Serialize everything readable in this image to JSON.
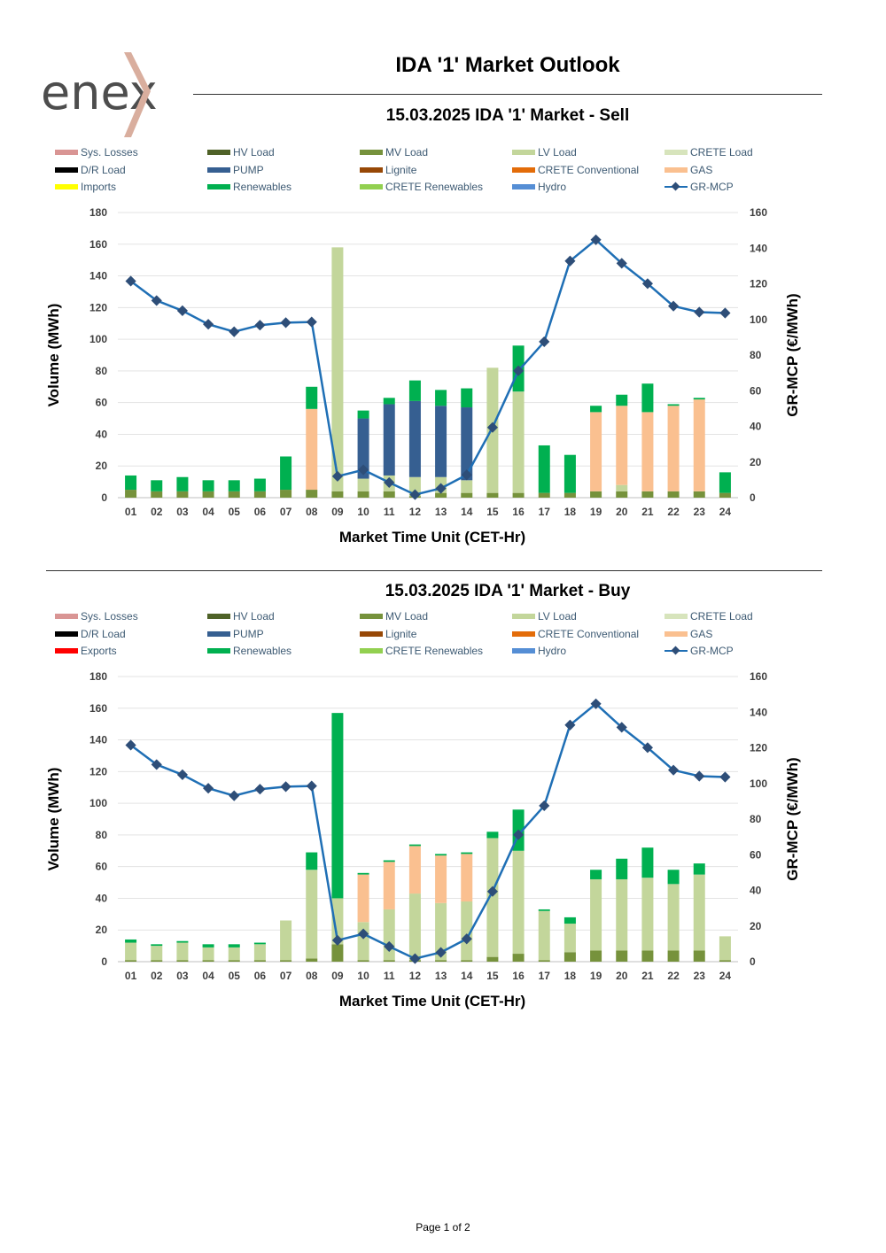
{
  "brand": {
    "logo_text": "enex"
  },
  "page": {
    "title": "IDA '1' Market Outlook",
    "footer": "Page 1 of 2"
  },
  "series_colors": {
    "Sys. Losses": "#d99594",
    "HV Load": "#4f6228",
    "MV Load": "#76923c",
    "LV Load": "#c3d69b",
    "CRETE Load": "#d7e4bc",
    "D/R Load": "#000000",
    "PUMP": "#365f91",
    "Lignite": "#974806",
    "CRETE Conventional": "#e36c09",
    "GAS": "#fac090",
    "Imports": "#ffff00",
    "Exports": "#ff0000",
    "Renewables": "#00b050",
    "CRETE Renewables": "#92d050",
    "Hydro": "#558ed5",
    "GR-MCP": "#1f6fb5"
  },
  "chart_data": [
    {
      "type": "bar",
      "title": "15.03.2025  IDA '1' Market - Sell",
      "xlabel": "Market Time Unit (CET-Hr)",
      "ylabel": "Volume (MWh)",
      "y2label": "GR-MCP (€/MWh)",
      "ylim": [
        0,
        180
      ],
      "yticks": [
        0,
        20,
        40,
        60,
        80,
        100,
        120,
        140,
        160,
        180
      ],
      "y2lim": [
        0,
        160
      ],
      "y2ticks": [
        0,
        20,
        40,
        60,
        80,
        100,
        120,
        140,
        160
      ],
      "categories": [
        "01",
        "02",
        "03",
        "04",
        "05",
        "06",
        "07",
        "08",
        "09",
        "10",
        "11",
        "12",
        "13",
        "14",
        "15",
        "16",
        "17",
        "18",
        "19",
        "20",
        "21",
        "22",
        "23",
        "24"
      ],
      "legend": [
        [
          "Sys. Losses",
          "HV Load",
          "MV Load",
          "LV Load",
          "CRETE Load"
        ],
        [
          "D/R Load",
          "PUMP",
          "Lignite",
          "CRETE Conventional",
          "GAS"
        ],
        [
          "Imports",
          "Renewables",
          "CRETE Renewables",
          "Hydro",
          "GR-MCP"
        ]
      ],
      "series": [
        {
          "name": "MV Load",
          "values": [
            5,
            4,
            4,
            4,
            4,
            4,
            5,
            5,
            4,
            4,
            4,
            1,
            3,
            3,
            3,
            3,
            3,
            3,
            4,
            4,
            4,
            4,
            4,
            3
          ]
        },
        {
          "name": "LV Load",
          "values": [
            0,
            0,
            0,
            0,
            0,
            0,
            0,
            0,
            154,
            8,
            10,
            12,
            10,
            8,
            79,
            64,
            0,
            0,
            0,
            4,
            0,
            0,
            0,
            0
          ]
        },
        {
          "name": "PUMP",
          "values": [
            0,
            0,
            0,
            0,
            0,
            0,
            0,
            0,
            0,
            38,
            45,
            48,
            45,
            46,
            0,
            0,
            0,
            0,
            0,
            0,
            0,
            0,
            0,
            0
          ]
        },
        {
          "name": "GAS",
          "values": [
            0,
            0,
            0,
            0,
            0,
            0,
            0,
            51,
            0,
            0,
            0,
            0,
            0,
            0,
            0,
            0,
            0,
            0,
            50,
            50,
            50,
            54,
            58,
            0
          ]
        },
        {
          "name": "Renewables",
          "values": [
            9,
            7,
            9,
            7,
            7,
            8,
            21,
            14,
            0,
            5,
            4,
            13,
            10,
            12,
            0,
            29,
            30,
            24,
            4,
            7,
            18,
            1,
            1,
            13
          ]
        }
      ],
      "line": {
        "name": "GR-MCP",
        "values": [
          121.5,
          110.6,
          104.9,
          97.3,
          93.1,
          96.8,
          98.2,
          98.6,
          12.0,
          15.6,
          8.5,
          1.7,
          5.2,
          12.8,
          39.4,
          71.2,
          87.5,
          132.8,
          144.7,
          131.5,
          120.1,
          107.5,
          104.1,
          103.6
        ]
      }
    },
    {
      "type": "bar",
      "title": "15.03.2025  IDA '1' Market - Buy",
      "xlabel": "Market Time Unit (CET-Hr)",
      "ylabel": "Volume (MWh)",
      "y2label": "GR-MCP (€/MWh)",
      "ylim": [
        0,
        180
      ],
      "yticks": [
        0,
        20,
        40,
        60,
        80,
        100,
        120,
        140,
        160,
        180
      ],
      "y2lim": [
        0,
        160
      ],
      "y2ticks": [
        0,
        20,
        40,
        60,
        80,
        100,
        120,
        140,
        160
      ],
      "categories": [
        "01",
        "02",
        "03",
        "04",
        "05",
        "06",
        "07",
        "08",
        "09",
        "10",
        "11",
        "12",
        "13",
        "14",
        "15",
        "16",
        "17",
        "18",
        "19",
        "20",
        "21",
        "22",
        "23",
        "24"
      ],
      "legend": [
        [
          "Sys. Losses",
          "HV Load",
          "MV Load",
          "LV Load",
          "CRETE Load"
        ],
        [
          "D/R Load",
          "PUMP",
          "Lignite",
          "CRETE Conventional",
          "GAS"
        ],
        [
          "Exports",
          "Renewables",
          "CRETE Renewables",
          "Hydro",
          "GR-MCP"
        ]
      ],
      "series": [
        {
          "name": "MV Load",
          "values": [
            1,
            1,
            1,
            1,
            1,
            1,
            1,
            2,
            11,
            1,
            1,
            1,
            1,
            1,
            3,
            5,
            1,
            6,
            7,
            7,
            7,
            7,
            7,
            1
          ]
        },
        {
          "name": "LV Load",
          "values": [
            11,
            9,
            11,
            8,
            8,
            10,
            25,
            56,
            29,
            24,
            32,
            42,
            36,
            37,
            75,
            65,
            31,
            18,
            45,
            45,
            46,
            42,
            48,
            15
          ]
        },
        {
          "name": "GAS",
          "values": [
            0,
            0,
            0,
            0,
            0,
            0,
            0,
            0,
            0,
            30,
            30,
            30,
            30,
            30,
            0,
            0,
            0,
            0,
            0,
            0,
            0,
            0,
            0,
            0
          ]
        },
        {
          "name": "Renewables",
          "values": [
            2,
            1,
            1,
            2,
            2,
            1,
            0,
            11,
            117,
            1,
            1,
            1,
            1,
            1,
            4,
            26,
            1,
            4,
            6,
            13,
            19,
            9,
            7,
            0
          ]
        }
      ],
      "line": {
        "name": "GR-MCP",
        "values": [
          121.5,
          110.6,
          104.9,
          97.3,
          93.1,
          96.8,
          98.2,
          98.6,
          12.0,
          15.6,
          8.5,
          1.7,
          5.2,
          12.8,
          39.4,
          71.2,
          87.5,
          132.8,
          144.7,
          131.5,
          120.1,
          107.5,
          104.1,
          103.6
        ]
      }
    }
  ]
}
